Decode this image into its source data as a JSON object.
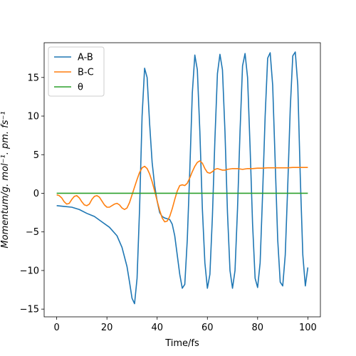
{
  "chart_data": {
    "type": "line",
    "title": "",
    "xlabel": "Time/fs",
    "ylabel": "Momentum/g. mol⁻¹. pm. fs⁻¹",
    "xlim": [
      -5,
      105
    ],
    "ylim": [
      -16,
      19.5
    ],
    "xticks": [
      0,
      20,
      40,
      60,
      80,
      100
    ],
    "yticks": [
      -15,
      -10,
      -5,
      0,
      5,
      10,
      15
    ],
    "xtick_labels": [
      "0",
      "20",
      "40",
      "60",
      "80",
      "100"
    ],
    "ytick_labels": [
      "−15",
      "−10",
      "−5",
      "0",
      "5",
      "10",
      "15"
    ],
    "grid": false,
    "legend_position": "top-left",
    "series": [
      {
        "name": "A-B",
        "color": "#1f77b4",
        "x": [
          0,
          3,
          6,
          9,
          12,
          15,
          18,
          21,
          24,
          26,
          28,
          29,
          30,
          31,
          32,
          33,
          34,
          35,
          36,
          37,
          38,
          39,
          40,
          41,
          42,
          43,
          44,
          45,
          46,
          47,
          48,
          49,
          50,
          51,
          52,
          53,
          54,
          55,
          56,
          57,
          58,
          59,
          60,
          61,
          62,
          63,
          64,
          65,
          66,
          67,
          68,
          69,
          70,
          71,
          72,
          73,
          74,
          75,
          76,
          77,
          78,
          79,
          80,
          81,
          82,
          83,
          84,
          85,
          86,
          87,
          88,
          89,
          90,
          91,
          92,
          93,
          94,
          95,
          96,
          97,
          98,
          99,
          100
        ],
        "y": [
          -1.6,
          -1.7,
          -1.8,
          -2.1,
          -2.6,
          -3.0,
          -3.7,
          -4.4,
          -5.5,
          -7.0,
          -9.5,
          -11.5,
          -13.6,
          -14.3,
          -11.0,
          -2.0,
          10.0,
          16.2,
          15.0,
          9.0,
          4.0,
          1.0,
          -1.0,
          -2.5,
          -3.0,
          -3.2,
          -3.3,
          -3.4,
          -4.0,
          -5.5,
          -8.0,
          -10.5,
          -12.3,
          -11.8,
          -6.0,
          3.0,
          13.0,
          17.9,
          16.0,
          8.0,
          -2.0,
          -9.0,
          -12.3,
          -10.5,
          -3.0,
          7.0,
          15.5,
          18.0,
          16.0,
          8.0,
          -2.5,
          -10.0,
          -12.3,
          -10.0,
          -2.0,
          8.0,
          16.5,
          18.1,
          15.0,
          6.0,
          -4.0,
          -11.0,
          -12.2,
          -9.0,
          0.0,
          10.0,
          17.5,
          18.2,
          14.0,
          4.0,
          -6.0,
          -11.5,
          -12.0,
          -8.0,
          1.0,
          11.0,
          17.8,
          18.3,
          14.0,
          2.0,
          -8.0,
          -12.0,
          -9.6
        ]
      },
      {
        "name": "B-C",
        "color": "#ff7f0e",
        "x": [
          0,
          1,
          2,
          3,
          4,
          5,
          6,
          7,
          8,
          9,
          10,
          11,
          12,
          13,
          14,
          15,
          16,
          17,
          18,
          19,
          20,
          21,
          22,
          23,
          24,
          25,
          26,
          27,
          28,
          29,
          30,
          31,
          32,
          33,
          34,
          35,
          36,
          37,
          38,
          39,
          40,
          41,
          42,
          43,
          44,
          45,
          46,
          47,
          48,
          49,
          50,
          51,
          52,
          53,
          54,
          55,
          56,
          57,
          58,
          59,
          60,
          61,
          62,
          63,
          64,
          65,
          66,
          67,
          68,
          70,
          72,
          74,
          76,
          78,
          80,
          82,
          84,
          86,
          88,
          90,
          92,
          94,
          96,
          98,
          100
        ],
        "y": [
          -0.2,
          -0.3,
          -0.6,
          -1.1,
          -1.4,
          -1.3,
          -0.8,
          -0.4,
          -0.3,
          -0.6,
          -1.1,
          -1.5,
          -1.6,
          -1.4,
          -0.8,
          -0.4,
          -0.3,
          -0.5,
          -1.0,
          -1.5,
          -1.8,
          -1.8,
          -1.6,
          -1.4,
          -1.3,
          -1.5,
          -1.9,
          -2.1,
          -1.9,
          -1.2,
          -0.2,
          0.8,
          1.8,
          2.7,
          3.3,
          3.5,
          3.2,
          2.5,
          1.5,
          0.3,
          -1.0,
          -2.2,
          -3.2,
          -3.7,
          -3.6,
          -3.0,
          -2.0,
          -0.8,
          0.3,
          1.0,
          1.1,
          1.0,
          1.3,
          2.0,
          2.8,
          3.5,
          4.0,
          4.2,
          3.9,
          3.2,
          2.7,
          2.6,
          2.8,
          3.1,
          3.2,
          3.1,
          3.0,
          3.0,
          3.1,
          3.2,
          3.2,
          3.1,
          3.2,
          3.2,
          3.25,
          3.25,
          3.3,
          3.3,
          3.3,
          3.3,
          3.3,
          3.35,
          3.35,
          3.35,
          3.35
        ]
      },
      {
        "name": "θ",
        "color": "#2ca02c",
        "x": [
          0,
          100
        ],
        "y": [
          0,
          0
        ]
      }
    ]
  }
}
